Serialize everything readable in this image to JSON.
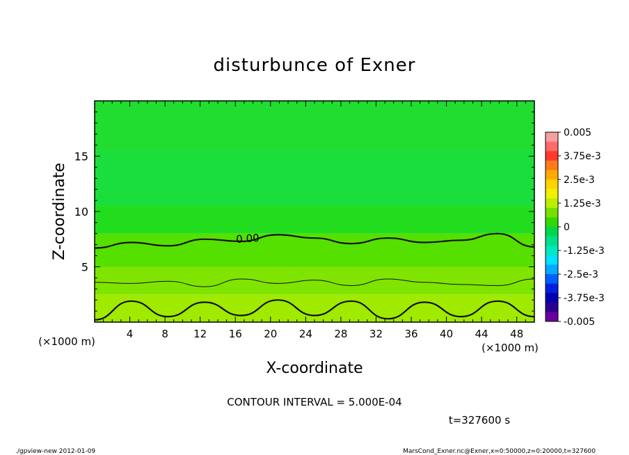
{
  "chart_data": {
    "type": "heatmap",
    "title": "disturbunce of Exner",
    "xlabel": "X-coordinate",
    "ylabel": "Z-coordinate",
    "x_unit_left": "(×1000 m)",
    "x_unit_right": "(×1000 m)",
    "xlim": [
      0,
      50
    ],
    "ylim": [
      0,
      20
    ],
    "x_ticks": [
      4,
      8,
      12,
      16,
      20,
      24,
      28,
      32,
      36,
      40,
      44,
      48
    ],
    "y_ticks": [
      5,
      10,
      15
    ],
    "contour_interval_text": "CONTOUR INTERVAL = 5.000E-04",
    "contour_label": "0.00",
    "time_text": "t=327600 s",
    "colorbar": {
      "labels": [
        "0.005",
        "3.75e-3",
        "2.5e-3",
        "1.25e-3",
        "0",
        "-1.25e-3",
        "-2.5e-3",
        "-3.75e-3",
        "-0.005"
      ],
      "levels": [
        0.005,
        0.00375,
        0.0025,
        0.00125,
        0,
        -0.00125,
        -0.0025,
        -0.00375,
        -0.005
      ],
      "colors": [
        "#f7a0a0",
        "#ff6a6a",
        "#ff3a2a",
        "#ff7a1a",
        "#ffaa00",
        "#ffd400",
        "#f0f000",
        "#b8f000",
        "#77e000",
        "#33d800",
        "#00d84a",
        "#00e08a",
        "#00e8c0",
        "#00e0ff",
        "#00aaff",
        "#0060ff",
        "#0020e0",
        "#0000b0",
        "#2a0090",
        "#6a00a0"
      ]
    },
    "contours": [
      {
        "value": 0.0,
        "z": [
          6.7,
          7.2,
          6.9,
          7.5,
          7.3,
          7.9,
          7.6,
          7.1,
          7.6,
          7.2,
          7.4,
          8.0,
          6.8
        ]
      },
      {
        "value": 0.0005,
        "z": [
          3.6,
          3.5,
          3.7,
          3.2,
          3.9,
          3.5,
          3.8,
          3.3,
          3.9,
          3.6,
          3.4,
          3.3,
          3.9
        ]
      },
      {
        "value": 0.001,
        "z": [
          0.2,
          1.9,
          0.5,
          1.8,
          0.6,
          2.0,
          0.6,
          1.9,
          0.3,
          1.8,
          0.5,
          1.9,
          0.5
        ]
      }
    ],
    "field_bands": [
      {
        "z_from": 0,
        "z_to": 2.5,
        "color": "#a0ea00"
      },
      {
        "z_from": 2.5,
        "z_to": 5.0,
        "color": "#7fe400"
      },
      {
        "z_from": 5.0,
        "z_to": 8.0,
        "color": "#55e000"
      },
      {
        "z_from": 8.0,
        "z_to": 10.5,
        "color": "#22dd1e"
      },
      {
        "z_from": 10.5,
        "z_to": 15.5,
        "color": "#1ade3c"
      },
      {
        "z_from": 15.5,
        "z_to": 20.0,
        "color": "#20dd30"
      }
    ]
  },
  "footer": {
    "left": "./gpview-new  2012-01-09",
    "right": "MarsCond_Exner.nc@Exner,x=0:50000,z=0:20000,t=327600"
  }
}
